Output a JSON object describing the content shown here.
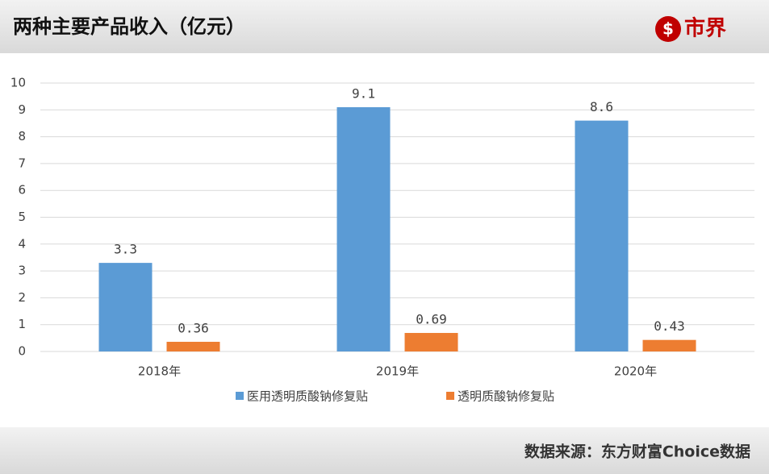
{
  "header": {
    "title": "两种主要产品收入（亿元）",
    "logo": "市界"
  },
  "chart_data": {
    "type": "bar",
    "categories": [
      "2018年",
      "2019年",
      "2020年"
    ],
    "series": [
      {
        "name": "医用透明质酸钠修复贴",
        "color": "#5b9bd5",
        "values": [
          3.3,
          9.1,
          8.6
        ]
      },
      {
        "name": "透明质酸钠修复贴",
        "color": "#ed7d31",
        "values": [
          0.36,
          0.69,
          0.43
        ]
      }
    ],
    "ylim": [
      0,
      10
    ],
    "yticks": [
      0,
      1,
      2,
      3,
      4,
      5,
      6,
      7,
      8,
      9,
      10
    ],
    "grid": true,
    "legend": "bottom"
  },
  "footer": {
    "source": "数据来源：东方财富Choice数据"
  }
}
